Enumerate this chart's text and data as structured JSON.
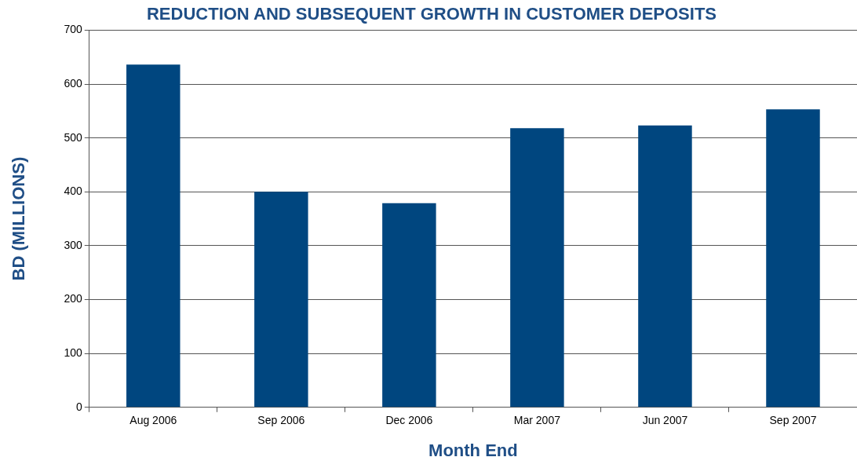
{
  "chart_data": {
    "type": "bar",
    "title": "REDUCTION AND SUBSEQUENT GROWTH IN CUSTOMER DEPOSITS",
    "xlabel": "Month End",
    "ylabel": "BD (MILLIONS)",
    "categories": [
      "Aug 2006",
      "Sep 2006",
      "Dec 2006",
      "Mar 2007",
      "Jun 2007",
      "Sep 2007"
    ],
    "values": [
      636,
      400,
      379,
      518,
      523,
      553
    ],
    "color": "#00467f",
    "ylim": [
      0,
      700
    ],
    "yticks": [
      0,
      100,
      200,
      300,
      400,
      500,
      600,
      700
    ],
    "grid": "y",
    "legend": false
  }
}
